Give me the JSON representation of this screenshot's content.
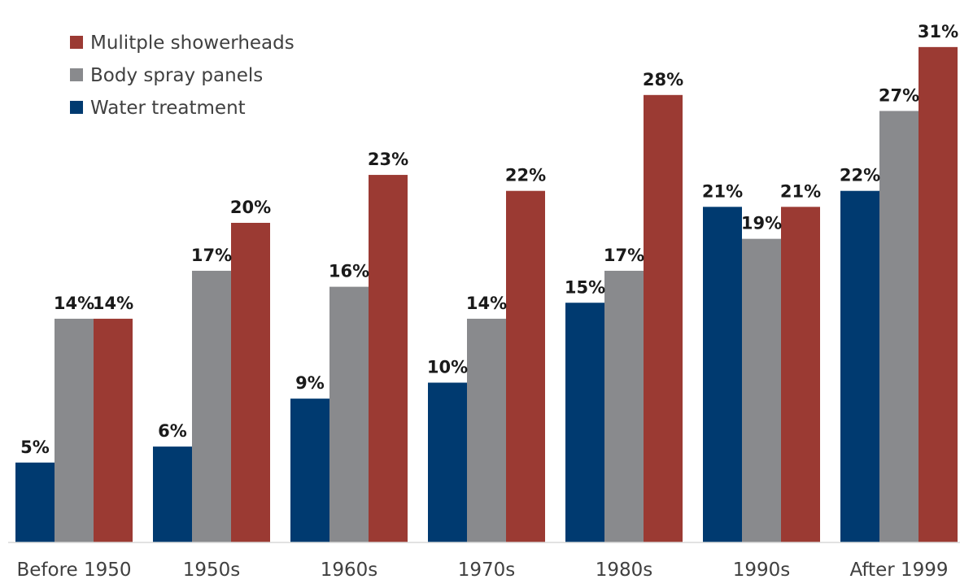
{
  "chart_data": {
    "type": "bar",
    "title": "",
    "xlabel": "",
    "ylabel": "",
    "ylim": [
      0,
      32
    ],
    "grid": false,
    "legend_position": "top-left",
    "categories": [
      "Before 1950",
      "1950s",
      "1960s",
      "1970s",
      "1980s",
      "1990s",
      "After 1999"
    ],
    "series": [
      {
        "name": "Water treatment",
        "color": "#003a70",
        "values": [
          5,
          6,
          9,
          10,
          15,
          21,
          22
        ]
      },
      {
        "name": "Body spray panels",
        "color": "#898a8d",
        "values": [
          14,
          17,
          16,
          14,
          17,
          19,
          27
        ]
      },
      {
        "name": "Mulitple showerheads",
        "color": "#9b3a33",
        "values": [
          14,
          20,
          23,
          22,
          28,
          21,
          31
        ]
      }
    ],
    "legend_order": [
      2,
      1,
      0
    ],
    "value_suffix": "%"
  }
}
